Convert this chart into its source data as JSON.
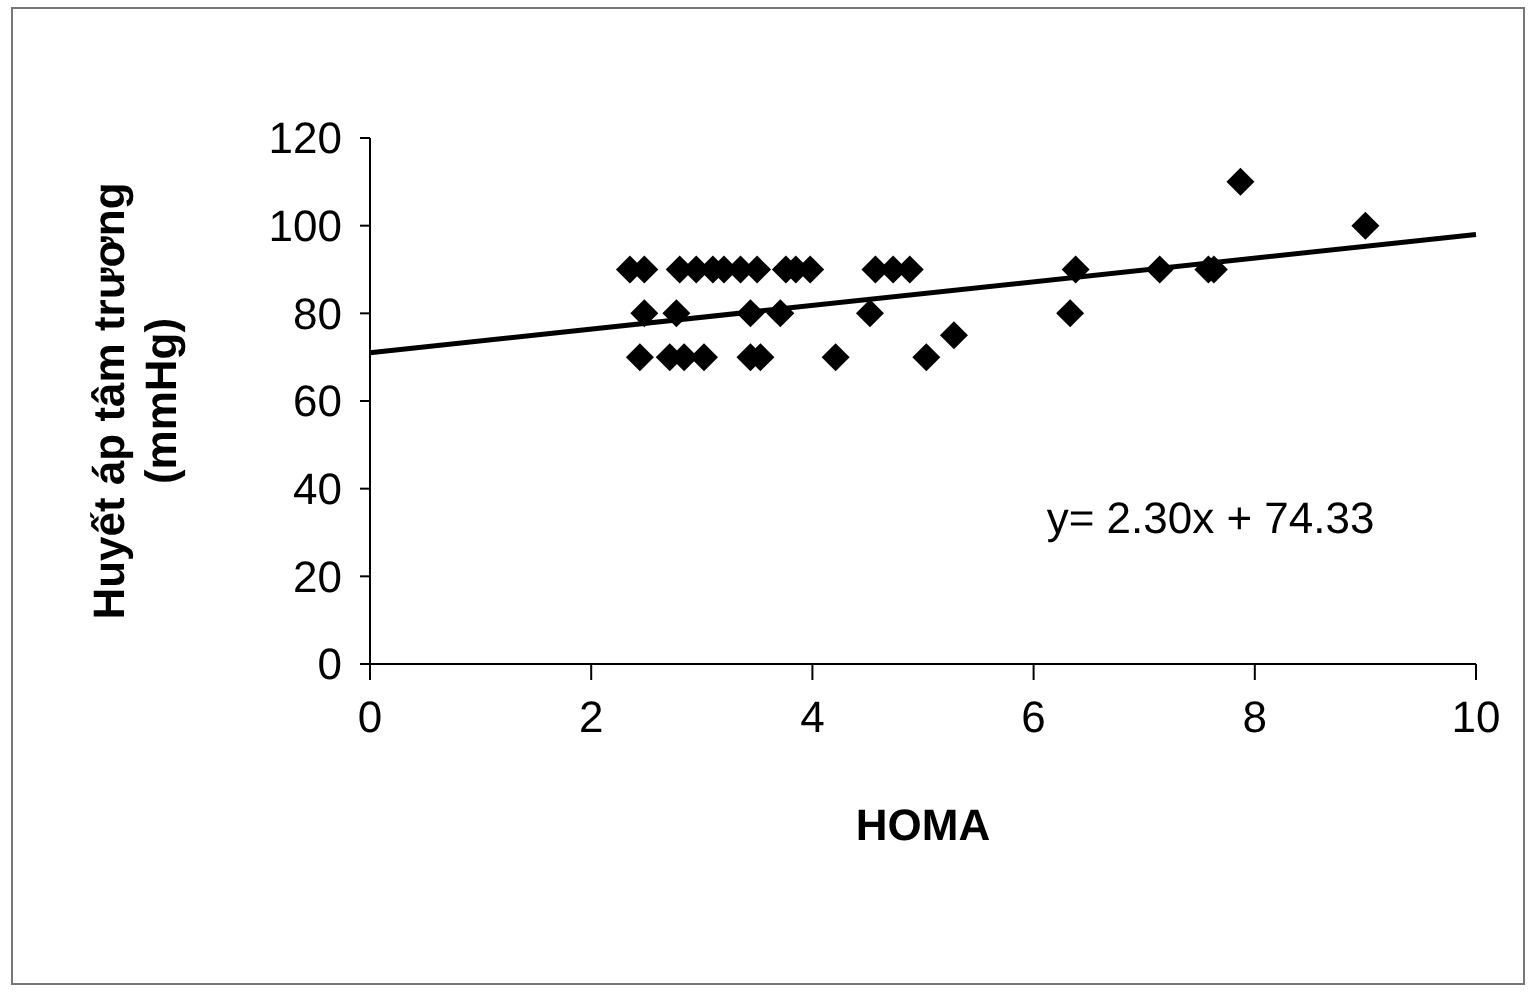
{
  "chart_data": {
    "type": "scatter",
    "xlabel": "HOMA",
    "ylabel": "Huyết áp tâm trương (mmHg)",
    "xlim": [
      0,
      10
    ],
    "ylim": [
      0,
      120
    ],
    "xticks": [
      0,
      2,
      4,
      6,
      8,
      10
    ],
    "yticks": [
      0,
      20,
      40,
      60,
      80,
      100,
      120
    ],
    "grid": false,
    "annotations": [
      "y= 2.30x + 74.33"
    ],
    "series": [
      {
        "marker": "diamond",
        "color": "#000000",
        "x": [
          2.35,
          2.48,
          2.8,
          2.95,
          3.1,
          3.2,
          3.35,
          3.5,
          3.76,
          3.85,
          3.98,
          4.57,
          4.73,
          4.88,
          2.48,
          2.77,
          3.44,
          3.71,
          4.52,
          2.44,
          2.71,
          2.84,
          3.02,
          3.44,
          3.53,
          4.21,
          5.03,
          5.28,
          6.38,
          6.33,
          7.14,
          7.58,
          7.63,
          7.87,
          9.0
        ],
        "values": [
          90,
          90,
          90,
          90,
          90,
          90,
          90,
          90,
          90,
          90,
          90,
          90,
          90,
          90,
          80,
          80,
          80,
          80,
          80,
          70,
          70,
          70,
          70,
          70,
          70,
          70,
          70,
          75,
          90,
          80,
          90,
          90,
          90,
          110,
          100
        ]
      },
      {
        "type": "line",
        "marker": "none",
        "color": "#000000",
        "x": [
          0,
          10
        ],
        "values": [
          71,
          98
        ]
      }
    ]
  }
}
